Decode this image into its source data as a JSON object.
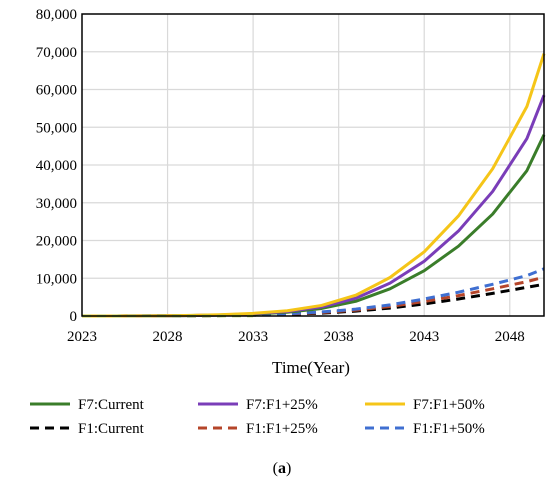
{
  "chart_data": {
    "type": "line",
    "title": "",
    "xlabel": "Time(Year)",
    "ylabel": "",
    "caption_prefix": "(",
    "caption_letter": "a",
    "caption_suffix": ")",
    "xlim": [
      2023,
      2050
    ],
    "ylim": [
      0,
      80000
    ],
    "x_ticks": [
      2023,
      2028,
      2033,
      2038,
      2043,
      2048
    ],
    "x_tick_labels": [
      "2023",
      "2028",
      "2033",
      "2038",
      "2043",
      "2048"
    ],
    "y_ticks": [
      0,
      10000,
      20000,
      30000,
      40000,
      50000,
      60000,
      70000,
      80000
    ],
    "y_tick_labels": [
      "0",
      "10,000",
      "20,000",
      "30,000",
      "40,000",
      "50,000",
      "60,000",
      "70,000",
      "80,000"
    ],
    "grid": true,
    "legend_position": "bottom",
    "x": [
      2023,
      2025,
      2027,
      2029,
      2031,
      2033,
      2035,
      2037,
      2039,
      2041,
      2043,
      2045,
      2047,
      2049,
      2050
    ],
    "series": [
      {
        "name": "F7:Current",
        "color": "#3a7d2a",
        "dash": "solid",
        "values": [
          0,
          10,
          30,
          90,
          230,
          500,
          1000,
          2000,
          3900,
          7200,
          12000,
          18500,
          27000,
          38500,
          48000
        ]
      },
      {
        "name": "F7:F1+25%",
        "color": "#7a3db8",
        "dash": "solid",
        "values": [
          0,
          12,
          36,
          108,
          280,
          600,
          1200,
          2400,
          4700,
          8700,
          14500,
          22500,
          33000,
          47000,
          58500
        ]
      },
      {
        "name": "F7:F1+50%",
        "color": "#f5c518",
        "dash": "solid",
        "values": [
          0,
          14,
          42,
          126,
          330,
          700,
          1400,
          2800,
          5500,
          10200,
          17000,
          26500,
          39000,
          55500,
          69500
        ]
      },
      {
        "name": "F1:Current",
        "color": "#000000",
        "dash": "dashed",
        "values": [
          0,
          5,
          15,
          40,
          100,
          220,
          420,
          760,
          1300,
          2100,
          3200,
          4500,
          6000,
          7600,
          8400
        ]
      },
      {
        "name": "F1:F1+25%",
        "color": "#b5452a",
        "dash": "dashed",
        "values": [
          0,
          6,
          18,
          48,
          120,
          265,
          505,
          915,
          1560,
          2520,
          3850,
          5400,
          7200,
          9100,
          10300
        ]
      },
      {
        "name": "F1:F1+50%",
        "color": "#3f6fd1",
        "dash": "dashed",
        "values": [
          0,
          7,
          21,
          56,
          140,
          310,
          590,
          1070,
          1820,
          2940,
          4500,
          6300,
          8400,
          10700,
          12500
        ]
      }
    ]
  }
}
